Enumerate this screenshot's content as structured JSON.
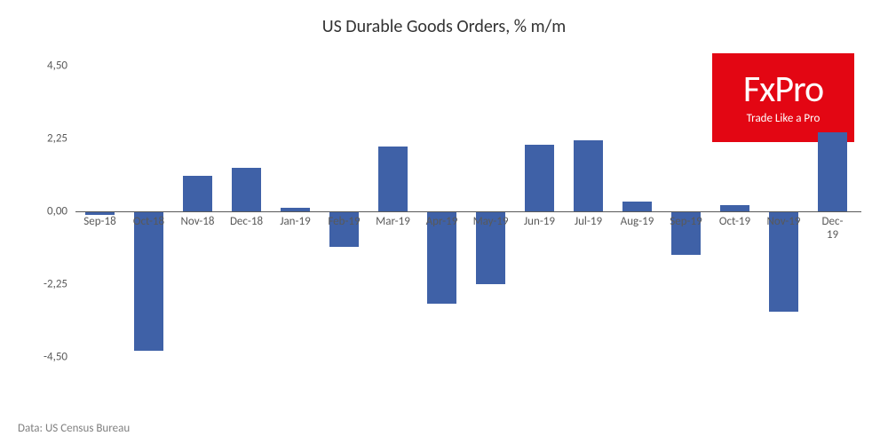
{
  "title": "US Durable Goods Orders, % m/m",
  "source_label": "Data: US Census Bureau",
  "logo": {
    "brand": "FxPro",
    "tagline": "Trade Like a Pro",
    "bg_color": "#e30613",
    "fg_color": "#ffffff"
  },
  "chart": {
    "type": "bar",
    "categories": [
      "Sep-18",
      "Oct-18",
      "Nov-18",
      "Dec-18",
      "Jan-19",
      "Feb-19",
      "Mar-19",
      "Apr-19",
      "May-19",
      "Jun-19",
      "Jul-19",
      "Aug-19",
      "Sep-19",
      "Oct-19",
      "Nov-19",
      "Dec-19"
    ],
    "values": [
      -0.1,
      -4.3,
      1.1,
      1.35,
      0.1,
      -1.1,
      2.0,
      -2.85,
      -2.25,
      2.05,
      2.2,
      0.3,
      -1.35,
      0.2,
      -3.1,
      2.45
    ],
    "bar_color": "#3f61a7",
    "background_color": "#ffffff",
    "axis_color": "#595959",
    "ylim": [
      -4.5,
      4.5
    ],
    "yticks": [
      -4.5,
      -2.25,
      0.0,
      2.25,
      4.5
    ],
    "ytick_labels": [
      "-4,50",
      "-2,25",
      "0,00",
      "2,25",
      "4,50"
    ],
    "bar_width_ratio": 0.6,
    "label_fontsize": 13,
    "title_fontsize": 20,
    "label_color": "#595959"
  }
}
